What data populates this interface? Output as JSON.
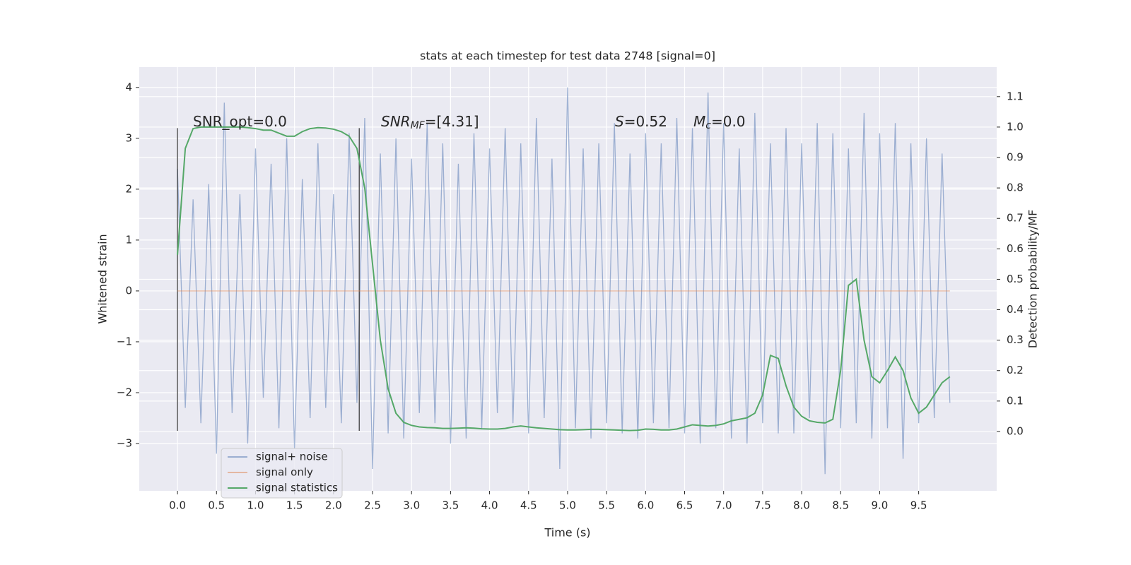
{
  "chart_data": {
    "type": "line",
    "title": "stats at each timestep for test data 2748 [signal=0]",
    "xlabel": "Time (s)",
    "ylabel": "Whitened strain",
    "y2label": "Detection probability/MF",
    "x": [
      0.0,
      0.1,
      0.2,
      0.3,
      0.4,
      0.5,
      0.6,
      0.7,
      0.8,
      0.9,
      1.0,
      1.1,
      1.2,
      1.3,
      1.4,
      1.5,
      1.6,
      1.7,
      1.8,
      1.9,
      2.0,
      2.1,
      2.2,
      2.3,
      2.4,
      2.5,
      2.6,
      2.7,
      2.8,
      2.9,
      3.0,
      3.1,
      3.2,
      3.3,
      3.4,
      3.5,
      3.6,
      3.7,
      3.8,
      3.9,
      4.0,
      4.1,
      4.2,
      4.3,
      4.4,
      4.5,
      4.6,
      4.7,
      4.8,
      4.9,
      5.0,
      5.1,
      5.2,
      5.3,
      5.4,
      5.5,
      5.6,
      5.7,
      5.8,
      5.9,
      6.0,
      6.1,
      6.2,
      6.3,
      6.4,
      6.5,
      6.6,
      6.7,
      6.8,
      6.9,
      7.0,
      7.1,
      7.2,
      7.3,
      7.4,
      7.5,
      7.6,
      7.7,
      7.8,
      7.9,
      8.0,
      8.1,
      8.2,
      8.3,
      8.4,
      8.5,
      8.6,
      8.7,
      8.8,
      8.9,
      9.0,
      9.1,
      9.2,
      9.3,
      9.4,
      9.5,
      9.6,
      9.7,
      9.8,
      9.9
    ],
    "series": [
      {
        "name": "signal+ noise",
        "color": "#4c72b0",
        "opacity": 0.5,
        "values": [
          2.4,
          -2.3,
          1.8,
          -2.6,
          2.1,
          -3.2,
          3.7,
          -2.4,
          1.9,
          -3.0,
          2.8,
          -2.1,
          2.5,
          -2.7,
          3.0,
          -3.1,
          2.2,
          -2.5,
          2.9,
          -2.3,
          1.9,
          -2.6,
          3.1,
          -2.2,
          3.4,
          -3.5,
          2.7,
          -2.8,
          3.0,
          -2.9,
          2.6,
          -2.4,
          3.3,
          -2.6,
          2.9,
          -3.0,
          2.5,
          -2.9,
          3.1,
          -2.7,
          2.8,
          -2.4,
          3.2,
          -2.6,
          2.9,
          -2.8,
          3.4,
          -2.5,
          2.6,
          -3.5,
          4.0,
          -2.7,
          2.8,
          -2.9,
          2.9,
          -2.6,
          3.3,
          -2.8,
          2.7,
          -2.9,
          3.1,
          -2.6,
          2.9,
          -2.7,
          3.4,
          -2.8,
          3.2,
          -3.0,
          3.9,
          -2.7,
          3.3,
          -2.9,
          2.8,
          -3.0,
          3.5,
          -2.6,
          2.9,
          -2.8,
          3.2,
          -2.8,
          2.9,
          -2.5,
          3.3,
          -3.6,
          3.1,
          -2.7,
          2.8,
          -2.6,
          3.5,
          -2.9,
          3.1,
          -2.7,
          3.3,
          -3.3,
          2.9,
          -2.6,
          3.0,
          -2.5,
          2.7,
          -2.2
        ]
      },
      {
        "name": "signal only",
        "color": "#dd8452",
        "opacity": 0.5,
        "values": [
          0,
          0,
          0,
          0,
          0,
          0,
          0,
          0,
          0,
          0,
          0,
          0,
          0,
          0,
          0,
          0,
          0,
          0,
          0,
          0,
          0,
          0,
          0,
          0,
          0,
          0,
          0,
          0,
          0,
          0,
          0,
          0,
          0,
          0,
          0,
          0,
          0,
          0,
          0,
          0,
          0,
          0,
          0,
          0,
          0,
          0,
          0,
          0,
          0,
          0,
          0,
          0,
          0,
          0,
          0,
          0,
          0,
          0,
          0,
          0,
          0,
          0,
          0,
          0,
          0,
          0,
          0,
          0,
          0,
          0,
          0,
          0,
          0,
          0,
          0,
          0,
          0,
          0,
          0,
          0,
          0,
          0,
          0,
          0,
          0,
          0,
          0,
          0,
          0,
          0,
          0,
          0,
          0,
          0,
          0,
          0,
          0,
          0,
          0,
          0
        ]
      },
      {
        "name": "signal statistics",
        "color": "#55a868",
        "opacity": 1,
        "axis": "y2",
        "values": [
          0.58,
          0.93,
          0.995,
          1.0,
          1.0,
          1.0,
          1.0,
          1.0,
          1.0,
          0.998,
          0.995,
          0.99,
          0.99,
          0.98,
          0.97,
          0.97,
          0.985,
          0.995,
          0.998,
          0.997,
          0.993,
          0.985,
          0.97,
          0.93,
          0.8,
          0.55,
          0.3,
          0.14,
          0.06,
          0.03,
          0.02,
          0.015,
          0.013,
          0.012,
          0.01,
          0.01,
          0.011,
          0.012,
          0.011,
          0.009,
          0.008,
          0.008,
          0.01,
          0.015,
          0.018,
          0.015,
          0.012,
          0.01,
          0.008,
          0.006,
          0.005,
          0.005,
          0.006,
          0.007,
          0.007,
          0.006,
          0.005,
          0.004,
          0.003,
          0.004,
          0.008,
          0.007,
          0.005,
          0.005,
          0.008,
          0.015,
          0.022,
          0.02,
          0.018,
          0.02,
          0.025,
          0.035,
          0.04,
          0.045,
          0.06,
          0.12,
          0.25,
          0.24,
          0.15,
          0.08,
          0.05,
          0.035,
          0.03,
          0.028,
          0.04,
          0.2,
          0.48,
          0.5,
          0.3,
          0.18,
          0.16,
          0.2,
          0.245,
          0.2,
          0.11,
          0.06,
          0.08,
          0.12,
          0.16,
          0.18
        ]
      }
    ],
    "vlines": [
      {
        "x": 0,
        "ymin": -2.75,
        "ymax": 3.2,
        "color": "#333333"
      },
      {
        "x": 2.33,
        "ymin": -2.75,
        "ymax": 3.2,
        "color": "#333333"
      }
    ],
    "annotations": [
      {
        "parts": [
          {
            "text": "SNR_opt=0.0",
            "style": "normal"
          }
        ]
      },
      {
        "parts": [
          {
            "text": "SNR",
            "style": "italic"
          },
          {
            "text": "MF",
            "style": "sub"
          },
          {
            "text": "=[4.31]",
            "style": "normal"
          }
        ]
      },
      {
        "parts": [
          {
            "text": "S",
            "style": "italic"
          },
          {
            "text": "=0.52",
            "style": "normal"
          }
        ]
      },
      {
        "parts": [
          {
            "text": "M",
            "style": "italic"
          },
          {
            "text": "c",
            "style": "sub"
          },
          {
            "text": "=0.0",
            "style": "normal"
          }
        ]
      }
    ],
    "xlim": [
      -0.49,
      10.5
    ],
    "ylim": [
      -3.93,
      4.4
    ],
    "y2lim": [
      -0.195,
      1.197
    ],
    "xticks": [
      {
        "value": 0,
        "label": "0.0"
      },
      {
        "value": 0.5,
        "label": "0.5"
      },
      {
        "value": 1,
        "label": "1.0"
      },
      {
        "value": 1.5,
        "label": "1.5"
      },
      {
        "value": 2,
        "label": "2.0"
      },
      {
        "value": 2.5,
        "label": "2.5"
      },
      {
        "value": 3,
        "label": "3.0"
      },
      {
        "value": 3.5,
        "label": "3.5"
      },
      {
        "value": 4,
        "label": "4.0"
      },
      {
        "value": 4.5,
        "label": "4.5"
      },
      {
        "value": 5,
        "label": "5.0"
      },
      {
        "value": 5.5,
        "label": "5.5"
      },
      {
        "value": 6,
        "label": "6.0"
      },
      {
        "value": 6.5,
        "label": "6.5"
      },
      {
        "value": 7,
        "label": "7.0"
      },
      {
        "value": 7.5,
        "label": "7.5"
      },
      {
        "value": 8,
        "label": "8.0"
      },
      {
        "value": 8.5,
        "label": "8.5"
      },
      {
        "value": 9,
        "label": "9.0"
      },
      {
        "value": 9.5,
        "label": "9.5"
      }
    ],
    "yticks": [
      {
        "value": -3,
        "label": "−3"
      },
      {
        "value": -2,
        "label": "−2"
      },
      {
        "value": -1,
        "label": "−1"
      },
      0,
      1,
      2,
      3,
      4
    ],
    "y2ticks": [
      {
        "value": 0,
        "label": "0.0"
      },
      {
        "value": 0.1,
        "label": "0.1"
      },
      {
        "value": 0.2,
        "label": "0.2"
      },
      {
        "value": 0.3,
        "label": "0.3"
      },
      {
        "value": 0.4,
        "label": "0.4"
      },
      {
        "value": 0.5,
        "label": "0.5"
      },
      {
        "value": 0.6,
        "label": "0.6"
      },
      {
        "value": 0.7,
        "label": "0.7"
      },
      {
        "value": 0.8,
        "label": "0.8"
      },
      {
        "value": 0.9,
        "label": "0.9"
      },
      {
        "value": 1,
        "label": "1.0"
      },
      {
        "value": 1.1,
        "label": "1.1"
      }
    ],
    "grid": true,
    "legend": "lower left"
  }
}
